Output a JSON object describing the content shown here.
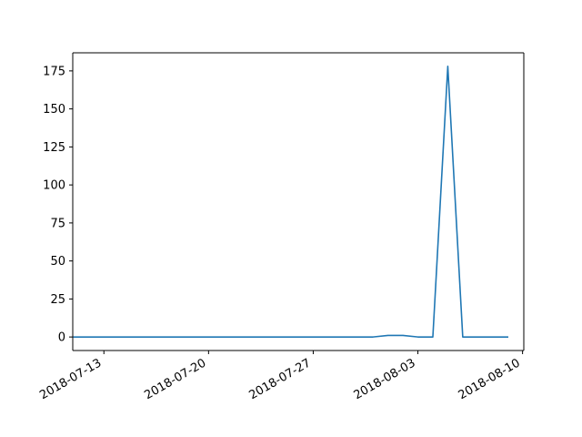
{
  "chart_data": {
    "type": "line",
    "title": "",
    "xlabel": "",
    "ylabel": "",
    "x_type": "date",
    "xlim": [
      "2018-07-10T22:00:00",
      "2018-08-10T02:00:00"
    ],
    "ylim": [
      -8.9,
      186.9
    ],
    "x_ticks": [
      "2018-07-13",
      "2018-07-20",
      "2018-07-27",
      "2018-08-03",
      "2018-08-10"
    ],
    "y_ticks": [
      0,
      25,
      50,
      75,
      100,
      125,
      150,
      175
    ],
    "grid": false,
    "legend": "none",
    "colors": {
      "line": "#1f77b4",
      "axis": "#000000",
      "background": "#ffffff"
    },
    "series": [
      {
        "points": [
          {
            "x": "2018-07-11",
            "y": 0
          },
          {
            "x": "2018-07-12",
            "y": 0
          },
          {
            "x": "2018-07-13",
            "y": 0
          },
          {
            "x": "2018-07-14",
            "y": 0
          },
          {
            "x": "2018-07-15",
            "y": 0
          },
          {
            "x": "2018-07-16",
            "y": 0
          },
          {
            "x": "2018-07-17",
            "y": 0
          },
          {
            "x": "2018-07-18",
            "y": 0
          },
          {
            "x": "2018-07-19",
            "y": 0
          },
          {
            "x": "2018-07-20",
            "y": 0
          },
          {
            "x": "2018-07-21",
            "y": 0
          },
          {
            "x": "2018-07-22",
            "y": 0
          },
          {
            "x": "2018-07-23",
            "y": 0
          },
          {
            "x": "2018-07-24",
            "y": 0
          },
          {
            "x": "2018-07-25",
            "y": 0
          },
          {
            "x": "2018-07-26",
            "y": 0
          },
          {
            "x": "2018-07-27",
            "y": 0
          },
          {
            "x": "2018-07-28",
            "y": 0
          },
          {
            "x": "2018-07-29",
            "y": 0
          },
          {
            "x": "2018-07-30",
            "y": 0
          },
          {
            "x": "2018-07-31",
            "y": 0
          },
          {
            "x": "2018-08-01",
            "y": 1
          },
          {
            "x": "2018-08-02",
            "y": 1
          },
          {
            "x": "2018-08-03",
            "y": 0
          },
          {
            "x": "2018-08-04",
            "y": 0
          },
          {
            "x": "2018-08-05",
            "y": 178
          },
          {
            "x": "2018-08-06",
            "y": 0
          },
          {
            "x": "2018-08-07",
            "y": 0
          },
          {
            "x": "2018-08-08",
            "y": 0
          },
          {
            "x": "2018-08-09",
            "y": 0
          }
        ]
      }
    ]
  }
}
